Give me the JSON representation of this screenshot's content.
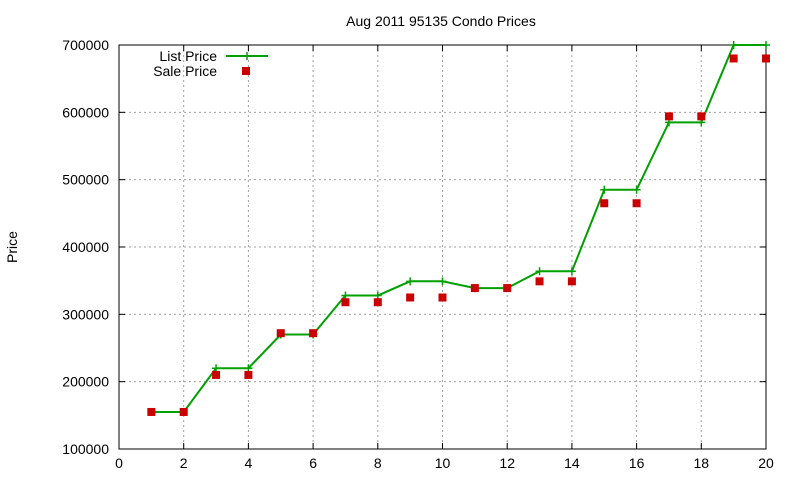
{
  "chart_data": {
    "type": "line",
    "title": "Aug 2011 95135 Condo Prices",
    "xlabel": "",
    "ylabel": "Price",
    "xlim": [
      0,
      20
    ],
    "ylim": [
      100000,
      700000
    ],
    "grid": true,
    "legend_position": "top-left",
    "x_ticks": [
      "0",
      "2",
      "4",
      "6",
      "8",
      "10",
      "12",
      "14",
      "16",
      "18",
      "20"
    ],
    "y_ticks": [
      "100000",
      "200000",
      "300000",
      "400000",
      "500000",
      "600000",
      "700000"
    ],
    "series": [
      {
        "name": "List Price",
        "style": "line-with-plus-markers",
        "color": "#00a000",
        "x": [
          1,
          2,
          3,
          4,
          5,
          6,
          7,
          8,
          9,
          10,
          11,
          12,
          13,
          14,
          15,
          16,
          17,
          18,
          19,
          20
        ],
        "values": [
          155000,
          155000,
          220000,
          220000,
          270000,
          270000,
          328000,
          328000,
          349000,
          349000,
          339000,
          339000,
          364000,
          364000,
          485000,
          485000,
          585000,
          585000,
          700000,
          700000
        ]
      },
      {
        "name": "Sale Price",
        "style": "square-markers",
        "color": "#cc0000",
        "x": [
          1,
          2,
          3,
          4,
          5,
          6,
          7,
          8,
          9,
          10,
          11,
          12,
          13,
          14,
          15,
          16,
          17,
          18,
          19,
          20
        ],
        "values": [
          155000,
          155000,
          210000,
          210000,
          272000,
          272000,
          318000,
          318000,
          325000,
          325000,
          339000,
          339000,
          349000,
          349000,
          465000,
          465000,
          594000,
          594000,
          680000,
          680000
        ]
      }
    ]
  }
}
